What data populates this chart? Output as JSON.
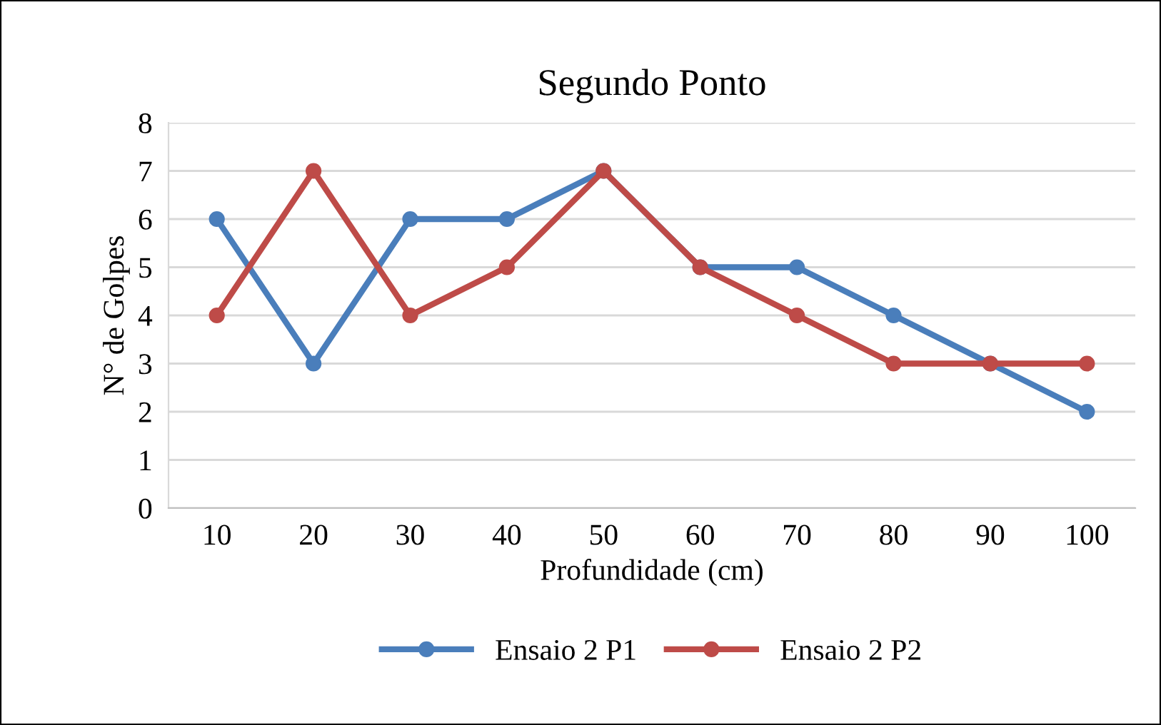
{
  "chart_data": {
    "type": "line",
    "title": "Segundo Ponto",
    "xlabel": "Profundidade (cm)",
    "ylabel": "N° de Golpes",
    "categories": [
      "10",
      "20",
      "30",
      "40",
      "50",
      "60",
      "70",
      "80",
      "90",
      "100"
    ],
    "series": [
      {
        "name": "Ensaio 2 P1",
        "color": "#4a7ebb",
        "values": [
          6,
          3,
          6,
          6,
          7,
          5,
          5,
          4,
          3,
          2
        ]
      },
      {
        "name": "Ensaio 2 P2",
        "color": "#be4b48",
        "values": [
          4,
          7,
          4,
          5,
          7,
          5,
          4,
          3,
          3,
          3
        ]
      }
    ],
    "ylim": [
      0,
      8
    ],
    "yticks": [
      0,
      1,
      2,
      3,
      4,
      5,
      6,
      7,
      8
    ],
    "grid": "y",
    "legend": "bottom",
    "marker": "circle",
    "line_style": "solid"
  }
}
